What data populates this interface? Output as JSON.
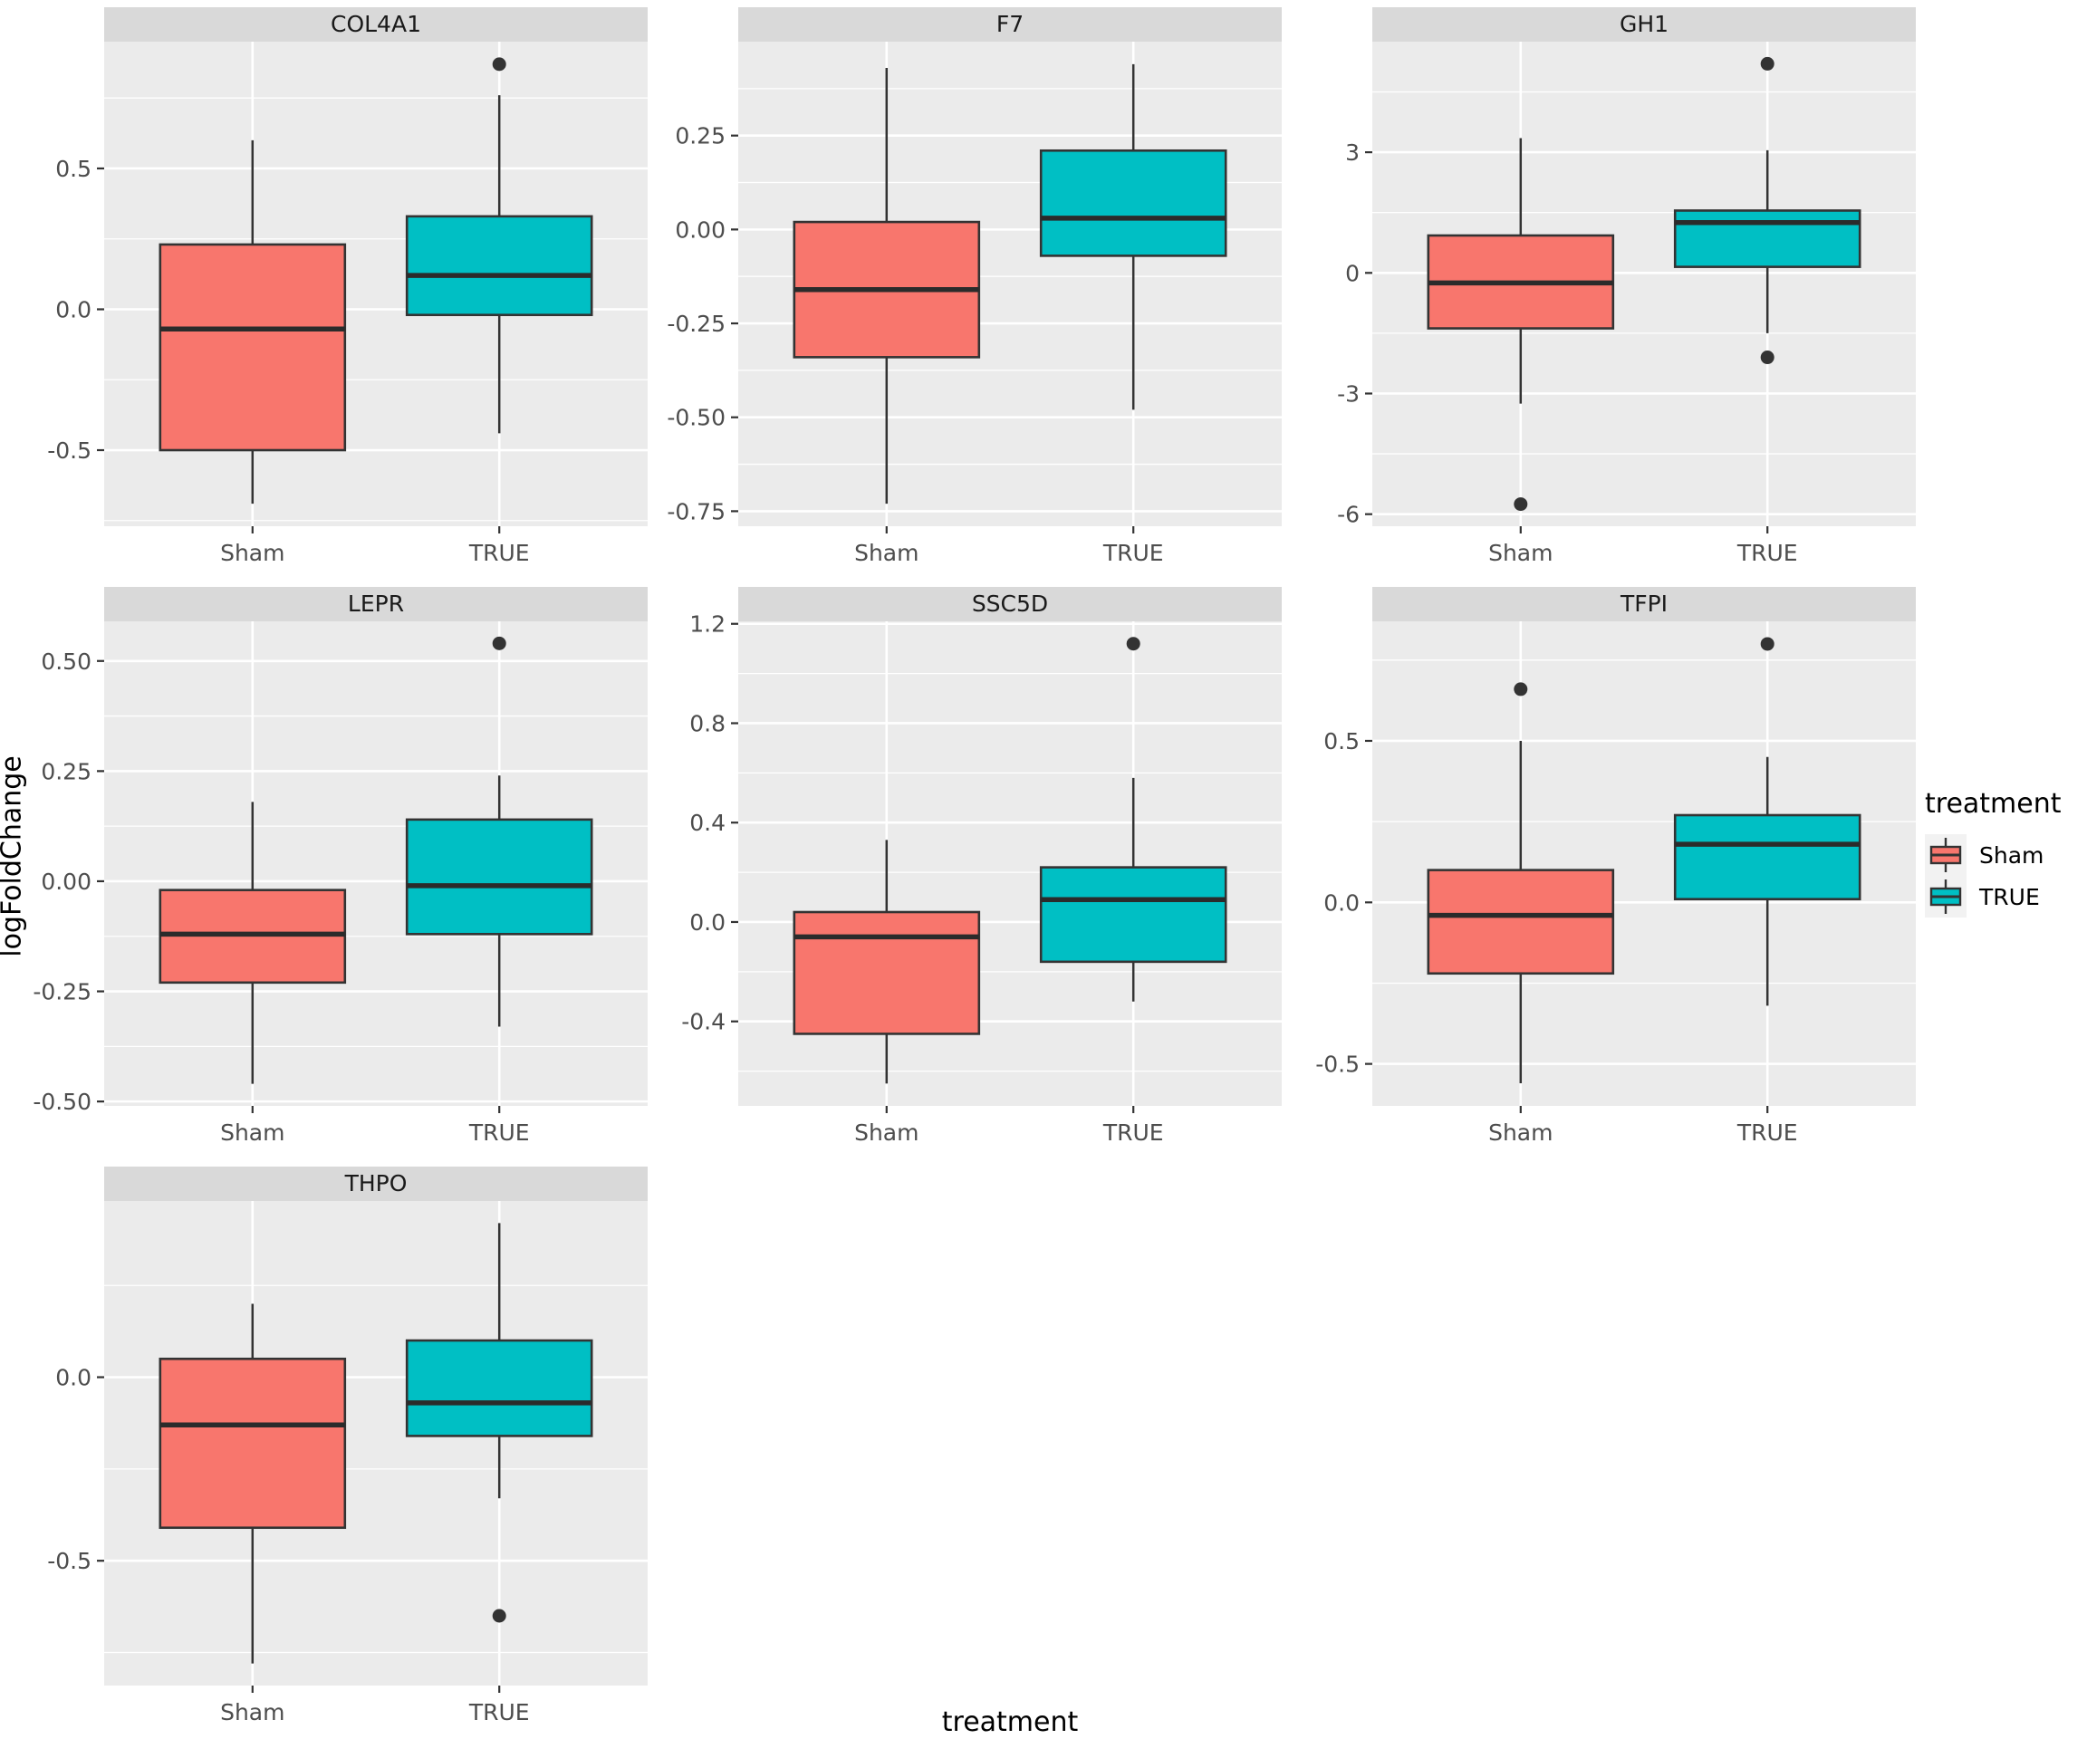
{
  "figure": {
    "ylabel": "logFoldChange",
    "xlabel": "treatment",
    "style": {
      "panel_bg": "#EBEBEB",
      "strip_bg": "#D9D9D9",
      "grid_color": "#FFFFFF",
      "box_stroke": "#333333",
      "tick_text_color": "#4D4D4D",
      "strip_text_color": "#1A1A1A",
      "axis_title_color": "#000000"
    }
  },
  "legend": {
    "title": "treatment",
    "entries": [
      {
        "label": "Sham",
        "color": "#F8766D"
      },
      {
        "label": "TRUE",
        "color": "#00BFC4"
      }
    ]
  },
  "chart_data": {
    "type": "boxplot",
    "facet_variable": "gene",
    "x_variable": "treatment",
    "y_variable": "logFoldChange",
    "x_categories": [
      "Sham",
      "TRUE"
    ],
    "group_colors": {
      "Sham": "#F8766D",
      "TRUE": "#00BFC4"
    },
    "legend_position": "right",
    "grid": true,
    "facets": [
      {
        "title": "COL4A1",
        "ylim": [
          -0.77,
          0.95
        ],
        "yticks": [
          0.5,
          0.0,
          -0.5
        ],
        "ytick_labels": [
          "0.5",
          "0.0",
          "-0.5"
        ],
        "boxes": [
          {
            "group": "Sham",
            "whisker_low": -0.69,
            "q1": -0.5,
            "median": -0.07,
            "q3": 0.23,
            "whisker_high": 0.6,
            "outliers": []
          },
          {
            "group": "TRUE",
            "whisker_low": -0.44,
            "q1": -0.02,
            "median": 0.12,
            "q3": 0.33,
            "whisker_high": 0.76,
            "outliers": [
              0.87
            ]
          }
        ]
      },
      {
        "title": "F7",
        "ylim": [
          -0.79,
          0.5
        ],
        "yticks": [
          0.25,
          0.0,
          -0.25,
          -0.5,
          -0.75
        ],
        "ytick_labels": [
          "0.25",
          "0.00",
          "-0.25",
          "-0.50",
          "-0.75"
        ],
        "boxes": [
          {
            "group": "Sham",
            "whisker_low": -0.73,
            "q1": -0.34,
            "median": -0.16,
            "q3": 0.02,
            "whisker_high": 0.43,
            "outliers": []
          },
          {
            "group": "TRUE",
            "whisker_low": -0.48,
            "q1": -0.07,
            "median": 0.03,
            "q3": 0.21,
            "whisker_high": 0.44,
            "outliers": []
          }
        ]
      },
      {
        "title": "GH1",
        "ylim": [
          -6.3,
          5.75
        ],
        "yticks": [
          3,
          0,
          -3,
          -6
        ],
        "ytick_labels": [
          "3",
          "0",
          "-3",
          "-6"
        ],
        "boxes": [
          {
            "group": "Sham",
            "whisker_low": -3.25,
            "q1": -1.38,
            "median": -0.25,
            "q3": 0.93,
            "whisker_high": 3.35,
            "outliers": [
              -5.75
            ]
          },
          {
            "group": "TRUE",
            "whisker_low": -1.5,
            "q1": 0.15,
            "median": 1.25,
            "q3": 1.55,
            "whisker_high": 3.05,
            "outliers": [
              5.2,
              -2.1
            ]
          }
        ]
      },
      {
        "title": "LEPR",
        "ylim": [
          -0.51,
          0.59
        ],
        "yticks": [
          0.5,
          0.25,
          0.0,
          -0.25,
          -0.5
        ],
        "ytick_labels": [
          "0.50",
          "0.25",
          "0.00",
          "-0.25",
          "-0.50"
        ],
        "boxes": [
          {
            "group": "Sham",
            "whisker_low": -0.46,
            "q1": -0.23,
            "median": -0.12,
            "q3": -0.02,
            "whisker_high": 0.18,
            "outliers": []
          },
          {
            "group": "TRUE",
            "whisker_low": -0.33,
            "q1": -0.12,
            "median": -0.01,
            "q3": 0.14,
            "whisker_high": 0.24,
            "outliers": [
              0.54
            ]
          }
        ]
      },
      {
        "title": "SSC5D",
        "ylim": [
          -0.74,
          1.21
        ],
        "yticks": [
          1.2,
          0.8,
          0.4,
          0.0,
          -0.4
        ],
        "ytick_labels": [
          "1.2",
          "0.8",
          "0.4",
          "0.0",
          "-0.4"
        ],
        "boxes": [
          {
            "group": "Sham",
            "whisker_low": -0.65,
            "q1": -0.45,
            "median": -0.06,
            "q3": 0.04,
            "whisker_high": 0.33,
            "outliers": []
          },
          {
            "group": "TRUE",
            "whisker_low": -0.32,
            "q1": -0.16,
            "median": 0.09,
            "q3": 0.22,
            "whisker_high": 0.58,
            "outliers": [
              1.12
            ]
          }
        ]
      },
      {
        "title": "TFPI",
        "ylim": [
          -0.63,
          0.87
        ],
        "yticks": [
          0.5,
          0.0,
          -0.5
        ],
        "ytick_labels": [
          "0.5",
          "0.0",
          "-0.5"
        ],
        "boxes": [
          {
            "group": "Sham",
            "whisker_low": -0.56,
            "q1": -0.22,
            "median": -0.04,
            "q3": 0.1,
            "whisker_high": 0.5,
            "outliers": [
              0.66
            ]
          },
          {
            "group": "TRUE",
            "whisker_low": -0.32,
            "q1": 0.01,
            "median": 0.18,
            "q3": 0.27,
            "whisker_high": 0.45,
            "outliers": [
              0.8
            ]
          }
        ]
      },
      {
        "title": "THPO",
        "ylim": [
          -0.84,
          0.48
        ],
        "yticks": [
          0.0,
          -0.5
        ],
        "ytick_labels": [
          "0.0",
          "-0.5"
        ],
        "boxes": [
          {
            "group": "Sham",
            "whisker_low": -0.78,
            "q1": -0.41,
            "median": -0.13,
            "q3": 0.05,
            "whisker_high": 0.2,
            "outliers": []
          },
          {
            "group": "TRUE",
            "whisker_low": -0.33,
            "q1": -0.16,
            "median": -0.07,
            "q3": 0.1,
            "whisker_high": 0.42,
            "outliers": [
              -0.65
            ]
          }
        ]
      }
    ]
  }
}
